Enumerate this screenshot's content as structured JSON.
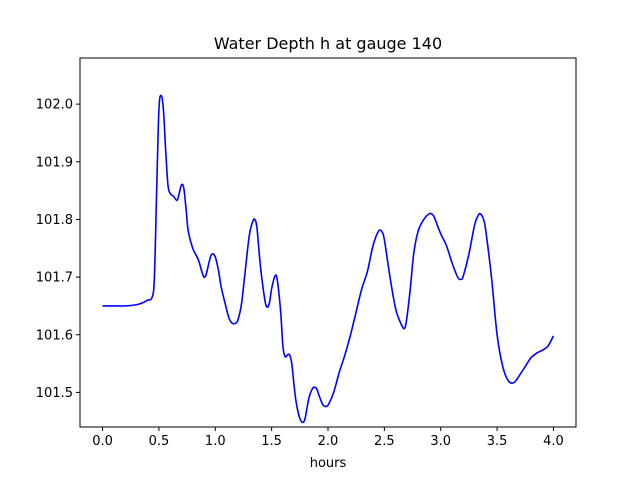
{
  "chart_data": {
    "type": "line",
    "title": "Water Depth h at gauge 140",
    "xlabel": "hours",
    "ylabel": "",
    "xlim": [
      -0.2,
      4.2
    ],
    "ylim": [
      101.44,
      102.08
    ],
    "x_ticks": [
      0.0,
      0.5,
      1.0,
      1.5,
      2.0,
      2.5,
      3.0,
      3.5,
      4.0
    ],
    "x_tick_labels": [
      "0.0",
      "0.5",
      "1.0",
      "1.5",
      "2.0",
      "2.5",
      "3.0",
      "3.5",
      "4.0"
    ],
    "y_ticks": [
      101.5,
      101.6,
      101.7,
      101.8,
      101.9,
      102.0
    ],
    "y_tick_labels": [
      "101.5",
      "101.6",
      "101.7",
      "101.8",
      "101.9",
      "102.0"
    ],
    "grid": false,
    "series": [
      {
        "color": "#0000ff",
        "x": [
          0.0,
          0.1,
          0.2,
          0.3,
          0.35,
          0.4,
          0.44,
          0.46,
          0.48,
          0.5,
          0.52,
          0.54,
          0.56,
          0.58,
          0.6,
          0.63,
          0.66,
          0.68,
          0.7,
          0.72,
          0.74,
          0.76,
          0.8,
          0.85,
          0.88,
          0.9,
          0.92,
          0.95,
          0.97,
          1.0,
          1.03,
          1.05,
          1.08,
          1.12,
          1.15,
          1.18,
          1.2,
          1.23,
          1.26,
          1.3,
          1.33,
          1.35,
          1.37,
          1.4,
          1.44,
          1.46,
          1.48,
          1.5,
          1.53,
          1.55,
          1.58,
          1.6,
          1.62,
          1.64,
          1.66,
          1.68,
          1.7,
          1.72,
          1.75,
          1.78,
          1.8,
          1.83,
          1.86,
          1.88,
          1.9,
          1.92,
          1.95,
          1.97,
          2.0,
          2.05,
          2.1,
          2.15,
          2.2,
          2.25,
          2.3,
          2.35,
          2.4,
          2.45,
          2.48,
          2.5,
          2.55,
          2.6,
          2.65,
          2.68,
          2.7,
          2.73,
          2.76,
          2.8,
          2.85,
          2.9,
          2.93,
          2.95,
          3.0,
          3.05,
          3.1,
          3.15,
          3.18,
          3.2,
          3.25,
          3.3,
          3.33,
          3.35,
          3.38,
          3.4,
          3.45,
          3.5,
          3.55,
          3.6,
          3.65,
          3.7,
          3.75,
          3.8,
          3.85,
          3.9,
          3.95,
          4.0
        ],
        "y": [
          101.65,
          101.65,
          101.65,
          101.652,
          101.655,
          101.66,
          101.665,
          101.7,
          101.85,
          101.99,
          102.015,
          101.99,
          101.92,
          101.86,
          101.845,
          101.84,
          101.833,
          101.845,
          101.86,
          101.855,
          101.82,
          101.78,
          101.75,
          101.73,
          101.71,
          101.7,
          101.705,
          101.73,
          101.74,
          101.735,
          101.71,
          101.685,
          101.66,
          101.63,
          101.62,
          101.62,
          101.625,
          101.65,
          101.7,
          101.77,
          101.795,
          101.8,
          101.785,
          101.72,
          101.66,
          101.648,
          101.655,
          101.68,
          101.702,
          101.695,
          101.64,
          101.58,
          101.562,
          101.565,
          101.565,
          101.548,
          101.51,
          101.48,
          101.455,
          101.448,
          101.458,
          101.49,
          101.506,
          101.509,
          101.506,
          101.495,
          101.48,
          101.476,
          101.478,
          101.5,
          101.535,
          101.565,
          101.6,
          101.64,
          101.68,
          101.71,
          101.755,
          101.78,
          101.778,
          101.765,
          101.7,
          101.645,
          101.618,
          101.611,
          101.63,
          101.68,
          101.74,
          101.78,
          101.8,
          101.81,
          101.808,
          101.8,
          101.775,
          101.755,
          101.725,
          101.7,
          101.696,
          101.702,
          101.74,
          101.79,
          101.806,
          101.81,
          101.8,
          101.78,
          101.7,
          101.6,
          101.545,
          101.52,
          101.517,
          101.53,
          101.545,
          101.56,
          101.568,
          101.573,
          101.58,
          101.598
        ]
      }
    ]
  }
}
